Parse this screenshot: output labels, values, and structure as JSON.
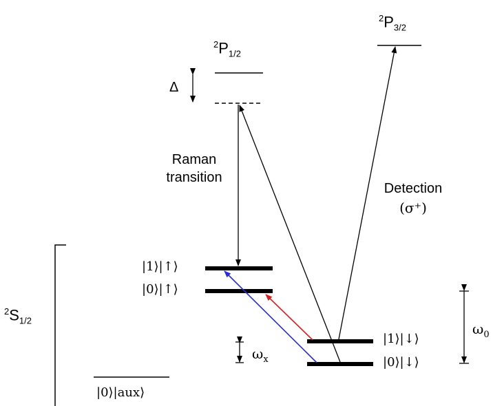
{
  "diagram": {
    "p12": {
      "sup": "2",
      "main": "P",
      "sub": "1/2"
    },
    "p32": {
      "sup": "2",
      "main": "P",
      "sub": "3/2"
    },
    "s12": {
      "sup": "2",
      "main": "S",
      "sub": "1/2"
    },
    "delta": "Δ",
    "raman_line1": "Raman",
    "raman_line2": "transition",
    "detection_line1": "Detection",
    "detection_line2": "(σ⁺)",
    "omega_x": {
      "main": "ω",
      "sub": "x"
    },
    "omega_0": {
      "main": "ω",
      "sub": "0"
    },
    "levels": {
      "one_up": "|1⟩|↑⟩",
      "zero_up": "|0⟩|↑⟩",
      "one_down": "|1⟩|↓⟩",
      "zero_down": "|0⟩|↓⟩",
      "aux": "|0⟩|aux⟩"
    },
    "colors": {
      "line": "#000000",
      "red_transition": "#d92020",
      "blue_transition": "#2a2ad8"
    }
  }
}
